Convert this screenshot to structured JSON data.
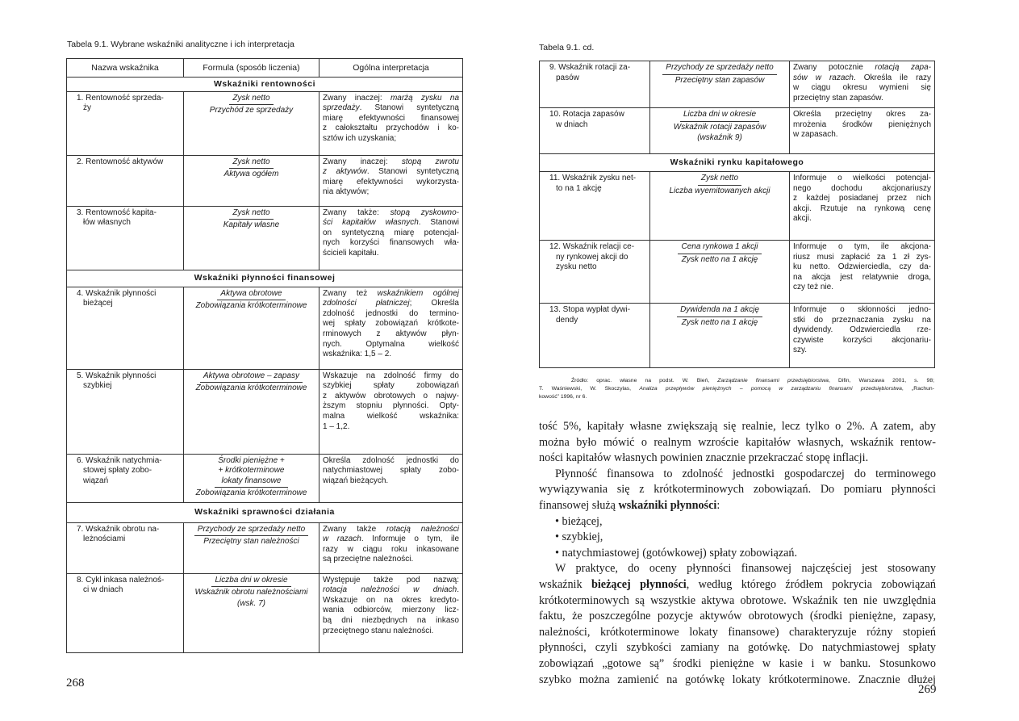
{
  "left": {
    "caption": "Tabela 9.1. Wybrane wskaźniki analityczne i ich interpretacja",
    "headers": [
      "Nazwa wskaźnika",
      "Formula (sposób liczenia)",
      "Ogólna interpretacja"
    ],
    "rows": [
      {
        "section": "Wskaźniki rentowności"
      },
      {
        "name": [
          "1. Rentowność sprzeda-",
          "ży"
        ],
        "num": [
          "Zysk netto"
        ],
        "den": "Przychód ze sprzedaży",
        "interp": [
          [
            "Zwany inaczej: ",
            {
              "i": "marżą zysku na"
            }
          ],
          [
            {
              "i": "sprzedaży"
            },
            ". Stanowi syntetyczną"
          ],
          [
            "miarę efektywności finansowej"
          ],
          [
            "z całokształtu przychodów i ko-"
          ],
          [
            "sztów ich uzyskania;"
          ]
        ]
      },
      {
        "name": [
          "2. Rentowność aktywów"
        ],
        "num": [
          "Zysk netto"
        ],
        "den": "Aktywa ogółem",
        "interp": [
          [
            "Zwany inaczej: ",
            {
              "i": "stopą zwrotu"
            }
          ],
          [
            {
              "i": "z aktywów"
            },
            ". Stanowi syntetyczną"
          ],
          [
            "miarę efektywności wykorzysta-"
          ],
          [
            "nia aktywów;"
          ]
        ]
      },
      {
        "name": [
          "3. Rentowność kapita-",
          "łów własnych"
        ],
        "num": [
          "Zysk netto"
        ],
        "den": "Kapitały własne",
        "interp": [
          [
            "Zwany także: ",
            {
              "i": "stopą zyskowno-"
            }
          ],
          [
            {
              "i": "ści kapitałów własnych"
            },
            ". Stanowi"
          ],
          [
            "on syntetyczną miarę potencjal-"
          ],
          [
            "nych korzyści finansowych wła-"
          ],
          [
            "ścicieli kapitału."
          ]
        ]
      },
      {
        "section": "Wskaźniki płynności finansowej"
      },
      {
        "name": [
          "4. Wskaźnik płynności",
          "bieżącej"
        ],
        "num": [
          "Aktywa obrotowe"
        ],
        "den": "Zobowiązania krótkoterminowe",
        "interp": [
          [
            "Zwany też ",
            {
              "i": "wskaźnikiem ogólnej"
            }
          ],
          [
            {
              "i": "zdolności płatniczej"
            },
            "; Określa"
          ],
          [
            "zdolność jednostki do termino-"
          ],
          [
            "wej spłaty zobowiązań krótkote-"
          ],
          [
            "rminowych z aktywów płyn-"
          ],
          [
            "nych. Optymalna wielkość"
          ],
          [
            "wskaźnika: 1,5 – 2."
          ]
        ]
      },
      {
        "name": [
          "5. Wskaźnik płynności",
          "szybkiej"
        ],
        "num": [
          "Aktywa obrotowe – zapasy"
        ],
        "den": "Zobowiązania krótkoterminowe",
        "interp": [
          [
            "Wskazuje na zdolność firmy do"
          ],
          [
            "szybkiej spłaty zobowiązań"
          ],
          [
            "z aktywów obrotowych o najwy-"
          ],
          [
            "ższym stopniu płynności. Opty-"
          ],
          [
            "malna wielkość wskaźnika:"
          ],
          [
            "1 – 1,2."
          ]
        ]
      },
      {
        "name": [
          "6. Wskaźnik natychmia-",
          "stowej spłaty zobo-",
          "wiązań"
        ],
        "num": [
          "Środki pieniężne +",
          "+ krótkoterminowe",
          "lokaty finansowe"
        ],
        "den": "Zobowiązania krótkoterminowe",
        "interp": [
          [
            "Określa zdolność jednostki do"
          ],
          [
            "natychmiastowej spłaty zobo-"
          ],
          [
            "wiązań bieżących."
          ]
        ]
      },
      {
        "section": "Wskaźniki sprawności działania"
      },
      {
        "name": [
          "7. Wskaźnik obrotu na-",
          "leżnościami"
        ],
        "num": [
          "Przychody ze sprzedaży netto"
        ],
        "den": "Przeciętny stan należności",
        "interp": [
          [
            "Zwany także ",
            {
              "i": "rotacją należności"
            }
          ],
          [
            {
              "i": "w razach"
            },
            ". Informuje o tym, ile"
          ],
          [
            "razy w ciągu roku inkasowane"
          ],
          [
            "są przeciętne należności."
          ]
        ]
      },
      {
        "name": [
          "8. Cykl inkasa należnoś-",
          "ci w dniach"
        ],
        "num": [
          "Liczba dni w okresie"
        ],
        "den": "Wskaźnik obrotu należnościami",
        "note": "(wsk. 7)",
        "interp": [
          [
            "Występuje także pod nazwą:"
          ],
          [
            {
              "i": "rotacja należności w dniach"
            },
            "."
          ],
          [
            "Wskazuje on na okres kredyto-"
          ],
          [
            "wania odbiorców, mierzony licz-"
          ],
          [
            "bą dni niezbędnych na inkaso"
          ],
          [
            "przeciętnego stanu należności."
          ]
        ]
      }
    ],
    "page_number": "268"
  },
  "right": {
    "caption": "Tabela 9.1. cd.",
    "rows": [
      {
        "name": [
          "9. Wskaźnik rotacji za-",
          "pasów"
        ],
        "num": [
          "Przychody ze sprzedaży netto"
        ],
        "den": "Przeciętny stan zapasów",
        "interp": [
          [
            "Zwany potocznie ",
            {
              "i": "rotacją zapa-"
            }
          ],
          [
            {
              "i": "sów w razach"
            },
            ". Określa ile razy"
          ],
          [
            "w ciągu okresu wymieni się"
          ],
          [
            "przeciętny stan zapasów."
          ]
        ]
      },
      {
        "name": [
          "10. Rotacja zapasów",
          "w dniach"
        ],
        "num": [
          "Liczba dni w okresie"
        ],
        "den": "Wskaźnik rotacji zapasów",
        "note": "(wskaźnik 9)",
        "interp": [
          [
            "Określa przeciętny okres za-"
          ],
          [
            "mrożenia środków pieniężnych"
          ],
          [
            "w zapasach."
          ]
        ]
      },
      {
        "section": "Wskaźniki rynku kapitałowego"
      },
      {
        "name": [
          "11. Wskaźnik zysku net-",
          "to na 1 akcję"
        ],
        "num": [
          "Zysk netto"
        ],
        "den": "Liczba wyemitowanych akcji",
        "interp": [
          [
            "Informuje o wielkości potencjal-"
          ],
          [
            "nego dochodu akcjonariuszy"
          ],
          [
            "z każdej posiadanej przez nich"
          ],
          [
            "akcji. Rzutuje na rynkową cenę"
          ],
          [
            "akcji."
          ]
        ]
      },
      {
        "name": [
          "12. Wskaźnik relacji ce-",
          "ny rynkowej akcji do",
          "zysku netto"
        ],
        "num": [
          "Cena rynkowa 1 akcji"
        ],
        "den": "Zysk netto na 1 akcję",
        "interp": [
          [
            "Informuje o tym, ile akcjona-"
          ],
          [
            "riusz musi zapłacić za 1 zł zys-"
          ],
          [
            "ku netto. Odzwierciedla, czy da-"
          ],
          [
            "na akcja jest relatywnie droga,"
          ],
          [
            "czy też nie."
          ]
        ]
      },
      {
        "name": [
          "13. Stopa wypłat dywi-",
          "dendy"
        ],
        "num": [
          "Dywidenda na 1 akcję"
        ],
        "den": "Zysk netto na 1 akcję",
        "interp": [
          [
            "Informuje o skłonności jedno-"
          ],
          [
            "stki do przeznaczania zysku na"
          ],
          [
            "dywidendy. Odzwierciedla rze-"
          ],
          [
            "czywiste korzyści akcjonariu-"
          ],
          [
            "szy."
          ]
        ]
      }
    ],
    "source": [
      [
        "Źródło: oprac. własne na podst. W. Bień, ",
        {
          "i": "Zarządzanie finansami przedsiębiorstwa"
        },
        ", Difin, Warszawa 2001, s. 98;"
      ],
      [
        "T. Waśniewski, W. Skoczylas, ",
        {
          "i": "Analiza przepływów pieniężnych – pomocą w zarządzaniu finansami przedsiębiorstwa"
        },
        ", „Rachun-"
      ],
      [
        "kowość” 1996, nr 6."
      ]
    ],
    "body": [
      [
        "tość 5%, kapitały własne zwiększają się realnie, lecz tylko o 2%. A zatem, aby"
      ],
      [
        "można było mówić o realnym wzroście kapitałów własnych, wskaźnik rentow-"
      ],
      [
        "ności kapitałów własnych powinien znacznie przekraczać stopę inflacji.",
        {
          "last": true
        }
      ],
      [
        {
          "indent": true
        },
        "Płynność finansowa to zdolność jednostki gospodarczej do terminowego"
      ],
      [
        "wywiązywania się z krótkoterminowych zobowiązań. Do pomiaru płynności"
      ],
      [
        "finansowej służą ",
        {
          "b": "wskaźniki płynności"
        },
        ":",
        {
          "last": true
        }
      ],
      [
        {
          "indent": true
        },
        "• bieżącej,",
        {
          "last": true
        }
      ],
      [
        {
          "indent": true
        },
        "• szybkiej,",
        {
          "last": true
        }
      ],
      [
        {
          "indent": true
        },
        "• natychmiastowej (gotówkowej) spłaty zobowiązań.",
        {
          "last": true
        }
      ],
      [
        {
          "indent": true
        },
        "W praktyce, do oceny płynności finansowej najczęściej jest stosowany"
      ],
      [
        "wskaźnik ",
        {
          "b": "bieżącej płynności"
        },
        ", według którego źródłem pokrycia zobowiązań"
      ],
      [
        "krótkoterminowych są wszystkie aktywa obrotowe. Wskaźnik ten nie uwzględnia"
      ],
      [
        "faktu, że poszczególne pozycje aktywów obrotowych (środki pieniężne, zapasy,"
      ],
      [
        "należności, krótkoterminowe lokaty finansowe) charakteryzuje różny stopień"
      ],
      [
        "płynności, czyli szybkości zamiany na gotówkę. Do natychmiastowej spłaty"
      ],
      [
        "zobowiązań „gotowe są” środki pieniężne w kasie i w banku. Stosunkowo"
      ],
      [
        "szybko można zamienić na gotówkę lokaty krótkoterminowe. Znacznie dłużej"
      ]
    ],
    "page_number": "269"
  }
}
